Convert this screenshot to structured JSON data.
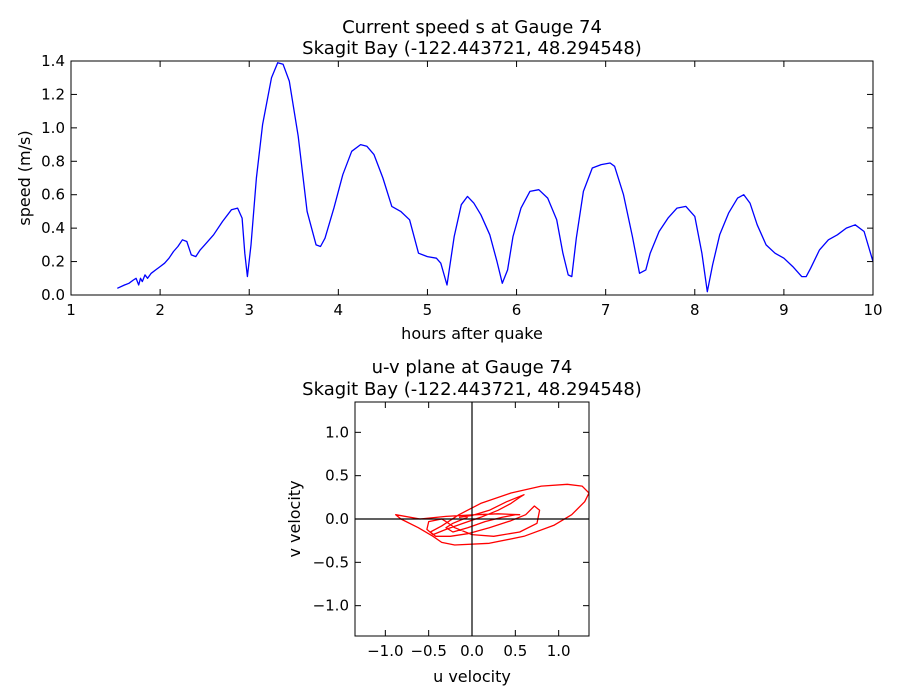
{
  "chart_data": [
    {
      "type": "line",
      "title": "Current speed s at Gauge 74",
      "subtitle": "Skagit Bay  (-122.443721, 48.294548)",
      "xlabel": "hours after quake",
      "ylabel": "speed (m/s)",
      "xlim": [
        1,
        10
      ],
      "ylim": [
        0,
        1.4
      ],
      "xticks": [
        1,
        2,
        3,
        4,
        5,
        6,
        7,
        8,
        9,
        10
      ],
      "yticks": [
        0.0,
        0.2,
        0.4,
        0.6,
        0.8,
        1.0,
        1.2,
        1.4
      ],
      "xtick_labels": [
        "1",
        "2",
        "3",
        "4",
        "5",
        "6",
        "7",
        "8",
        "9",
        "10"
      ],
      "ytick_labels": [
        "0.0",
        "0.2",
        "0.4",
        "0.6",
        "0.8",
        "1.0",
        "1.2",
        "1.4"
      ],
      "grid": false,
      "color": "#0000ff",
      "x": [
        1.52,
        1.6,
        1.65,
        1.7,
        1.73,
        1.76,
        1.78,
        1.8,
        1.83,
        1.86,
        1.9,
        1.95,
        2.0,
        2.05,
        2.1,
        2.15,
        2.2,
        2.25,
        2.3,
        2.35,
        2.4,
        2.45,
        2.5,
        2.6,
        2.7,
        2.8,
        2.87,
        2.92,
        2.95,
        2.98,
        3.02,
        3.08,
        3.15,
        3.25,
        3.32,
        3.38,
        3.45,
        3.55,
        3.65,
        3.75,
        3.8,
        3.85,
        3.95,
        4.05,
        4.15,
        4.25,
        4.32,
        4.4,
        4.5,
        4.6,
        4.7,
        4.8,
        4.9,
        5.0,
        5.1,
        5.15,
        5.22,
        5.3,
        5.38,
        5.45,
        5.52,
        5.6,
        5.7,
        5.78,
        5.84,
        5.9,
        5.96,
        6.05,
        6.15,
        6.25,
        6.35,
        6.45,
        6.52,
        6.58,
        6.62,
        6.67,
        6.75,
        6.85,
        6.95,
        7.05,
        7.1,
        7.2,
        7.3,
        7.38,
        7.45,
        7.5,
        7.6,
        7.7,
        7.8,
        7.9,
        8.0,
        8.08,
        8.14,
        8.2,
        8.28,
        8.38,
        8.48,
        8.55,
        8.62,
        8.7,
        8.8,
        8.9,
        9.0,
        9.1,
        9.2,
        9.25,
        9.3,
        9.4,
        9.5,
        9.6,
        9.7,
        9.8,
        9.9,
        10.0
      ],
      "y": [
        0.04,
        0.06,
        0.07,
        0.09,
        0.1,
        0.06,
        0.1,
        0.08,
        0.12,
        0.1,
        0.13,
        0.15,
        0.17,
        0.19,
        0.22,
        0.26,
        0.29,
        0.33,
        0.32,
        0.24,
        0.23,
        0.27,
        0.3,
        0.36,
        0.44,
        0.51,
        0.52,
        0.46,
        0.25,
        0.11,
        0.3,
        0.7,
        1.02,
        1.3,
        1.39,
        1.38,
        1.28,
        0.95,
        0.5,
        0.3,
        0.29,
        0.34,
        0.52,
        0.72,
        0.86,
        0.9,
        0.89,
        0.84,
        0.7,
        0.53,
        0.5,
        0.45,
        0.25,
        0.23,
        0.22,
        0.19,
        0.06,
        0.35,
        0.54,
        0.59,
        0.55,
        0.48,
        0.36,
        0.2,
        0.07,
        0.15,
        0.35,
        0.52,
        0.62,
        0.63,
        0.58,
        0.45,
        0.25,
        0.12,
        0.11,
        0.34,
        0.62,
        0.76,
        0.78,
        0.79,
        0.77,
        0.6,
        0.35,
        0.13,
        0.15,
        0.25,
        0.38,
        0.46,
        0.52,
        0.53,
        0.47,
        0.25,
        0.02,
        0.18,
        0.36,
        0.49,
        0.58,
        0.6,
        0.55,
        0.42,
        0.3,
        0.25,
        0.22,
        0.17,
        0.11,
        0.11,
        0.16,
        0.27,
        0.33,
        0.36,
        0.4,
        0.42,
        0.38,
        0.2
      ]
    },
    {
      "type": "line",
      "title": "u-v plane at Gauge 74",
      "subtitle": "Skagit Bay  (-122.443721, 48.294548)",
      "xlabel": "u velocity",
      "ylabel": "v velocity",
      "xlim": [
        -1.35,
        1.35
      ],
      "ylim": [
        -1.35,
        1.35
      ],
      "xticks": [
        -1.0,
        -0.5,
        0.0,
        0.5,
        1.0
      ],
      "yticks": [
        -1.0,
        -0.5,
        0.0,
        0.5,
        1.0
      ],
      "xtick_labels": [
        "−1.0",
        "−0.5",
        "0.0",
        "0.5",
        "1.0"
      ],
      "ytick_labels": [
        "−1.0",
        "−0.5",
        "0.0",
        "0.5",
        "1.0"
      ],
      "grid": false,
      "color": "#ff0000",
      "u": [
        -0.05,
        -0.1,
        -0.22,
        -0.3,
        -0.22,
        -0.05,
        0.15,
        0.35,
        0.5,
        0.55,
        0.3,
        0.05,
        -0.3,
        -0.6,
        -0.88,
        -0.82,
        -0.62,
        -0.45,
        -0.35,
        -0.2,
        0.2,
        0.6,
        0.95,
        1.15,
        1.3,
        1.35,
        1.27,
        1.1,
        0.8,
        0.45,
        0.1,
        -0.15,
        -0.35,
        -0.48,
        -0.42,
        -0.25,
        -0.05,
        0.2,
        0.45,
        0.62,
        0.72,
        0.78,
        0.75,
        0.55,
        0.25,
        0.0,
        -0.2,
        -0.3,
        -0.35,
        -0.5,
        -0.52,
        -0.45,
        -0.3,
        -0.1,
        0.1,
        0.3,
        0.45,
        0.55,
        0.6,
        0.4,
        0.2,
        0.0,
        -0.15
      ],
      "v": [
        0.02,
        0.0,
        -0.05,
        -0.1,
        -0.15,
        -0.1,
        -0.03,
        0.02,
        0.05,
        0.05,
        0.06,
        0.05,
        0.03,
        0.0,
        0.05,
        0.0,
        -0.1,
        -0.2,
        -0.27,
        -0.3,
        -0.28,
        -0.2,
        -0.07,
        0.05,
        0.2,
        0.3,
        0.38,
        0.4,
        0.38,
        0.3,
        0.18,
        0.05,
        -0.08,
        -0.15,
        -0.2,
        -0.2,
        -0.17,
        -0.1,
        -0.02,
        0.05,
        0.15,
        0.1,
        -0.05,
        -0.15,
        -0.2,
        -0.18,
        -0.1,
        -0.03,
        0.0,
        -0.03,
        -0.12,
        -0.18,
        -0.12,
        -0.05,
        0.02,
        0.1,
        0.18,
        0.25,
        0.28,
        0.2,
        0.1,
        0.04,
        0.02
      ]
    }
  ]
}
